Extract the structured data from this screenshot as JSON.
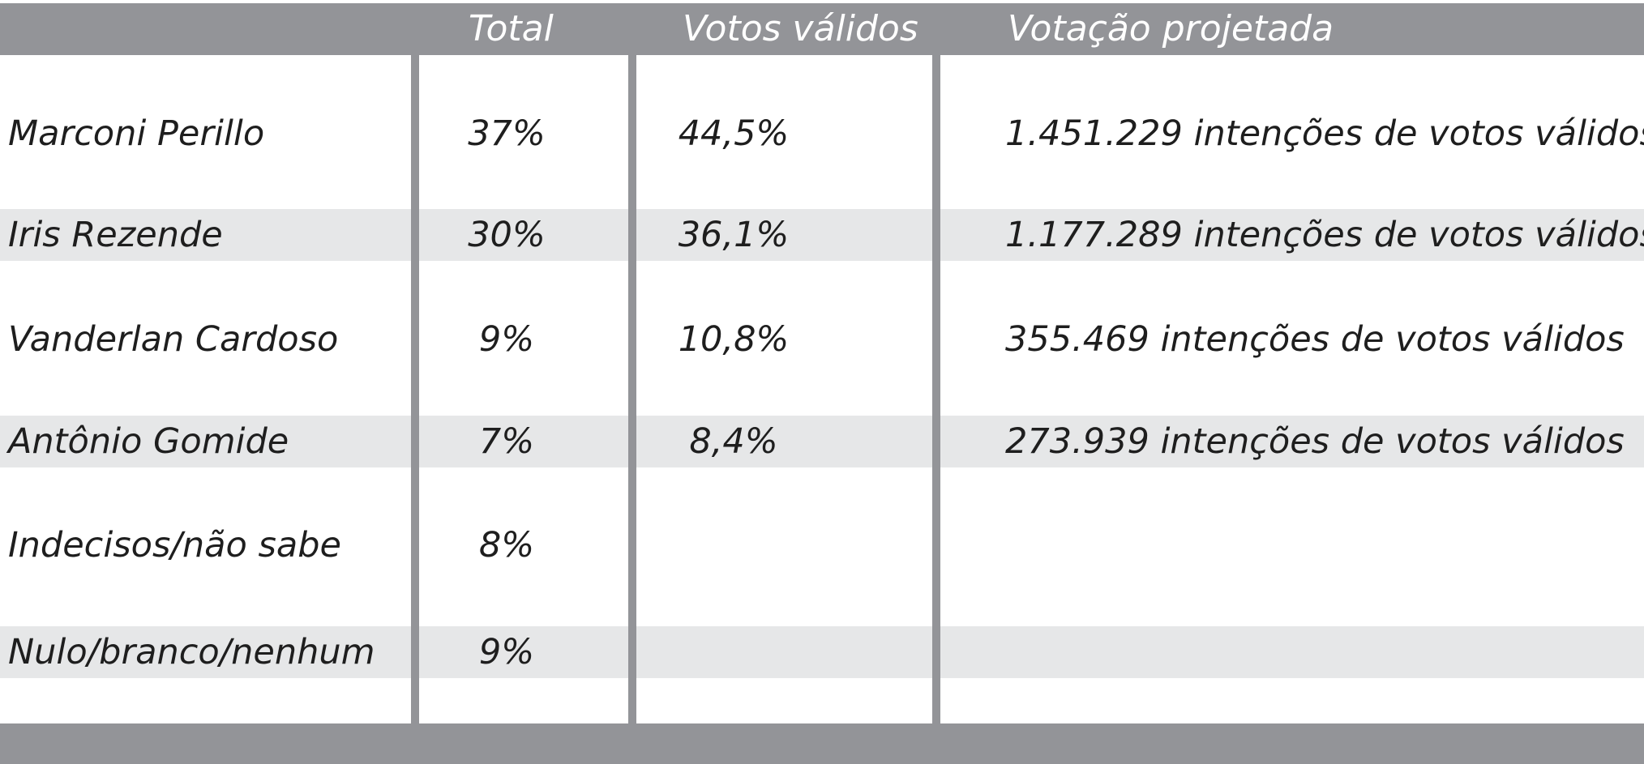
{
  "chart_data": {
    "type": "table",
    "columns": [
      "",
      "Total",
      "Votos válidos",
      "Votação projetada"
    ],
    "rows": [
      {
        "name": "Marconi Perillo",
        "total": "37%",
        "validos": "44,5%",
        "projetada": "1.451.229 intenções de votos válidos"
      },
      {
        "name": "Iris Rezende",
        "total": "30%",
        "validos": "36,1%",
        "projetada": "1.177.289 intenções de votos válidos"
      },
      {
        "name": "Vanderlan Cardoso",
        "total": "9%",
        "validos": "10,8%",
        "projetada": "355.469 intenções de votos válidos"
      },
      {
        "name": "Antônio Gomide",
        "total": "7%",
        "validos": "8,4%",
        "projetada": "273.939 intenções de votos válidos"
      },
      {
        "name": "Indecisos/não sabe",
        "total": "8%",
        "validos": "",
        "projetada": ""
      },
      {
        "name": "Nulo/branco/nenhum",
        "total": "9%",
        "validos": "",
        "projetada": ""
      }
    ]
  },
  "colors": {
    "header": "#939498",
    "row_shade": "#e6e7e8",
    "text": "#1e1e1e",
    "header_text": "#ffffff"
  }
}
